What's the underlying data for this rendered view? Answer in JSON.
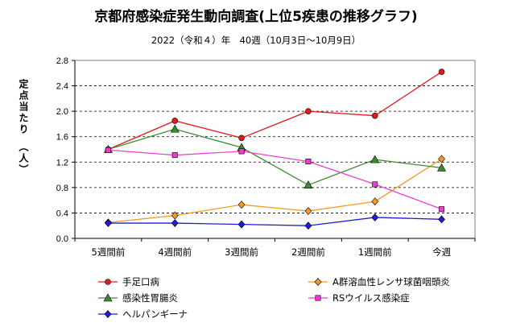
{
  "chart_data": {
    "type": "line",
    "title": "京都府感染症発生動向調査(上位5疾患の推移グラフ)",
    "subtitle": "2022（令和４）年　40週（10月3日〜10月9日）",
    "ylabel": "定点当たり　（人）",
    "xlabel": "",
    "ylim": [
      0,
      2.8
    ],
    "yticks": [
      0.0,
      0.4,
      0.8,
      1.2,
      1.6,
      2.0,
      2.4,
      2.8
    ],
    "ytick_labels": [
      "0.0",
      "0.4",
      "0.8",
      "1.2",
      "1.6",
      "2.0",
      "2.4",
      "2.8"
    ],
    "grid": "horizontal dashed",
    "legend_position": "bottom",
    "categories": [
      "5週間前",
      "4週間前",
      "3週間前",
      "2週間前",
      "1週間前",
      "今週"
    ],
    "series": [
      {
        "name": "手足口病",
        "color": "#e31a1c",
        "marker": "circle",
        "values": [
          1.4,
          1.85,
          1.58,
          2.0,
          1.93,
          2.62
        ]
      },
      {
        "name": "A群溶血性レンサ球菌咽頭炎",
        "color": "#f59a23",
        "marker": "diamond",
        "values": [
          0.25,
          0.36,
          0.53,
          0.43,
          0.58,
          1.25
        ]
      },
      {
        "name": "感染性胃腸炎",
        "color": "#3a8c2e",
        "marker": "triangle",
        "values": [
          1.4,
          1.72,
          1.43,
          0.84,
          1.24,
          1.11
        ]
      },
      {
        "name": "RSウイルス感染症",
        "color": "#ea3fd0",
        "marker": "square",
        "values": [
          1.39,
          1.31,
          1.37,
          1.21,
          0.85,
          0.46
        ]
      },
      {
        "name": "ヘルパンギーナ",
        "color": "#1f1fd1",
        "marker": "diamond",
        "values": [
          0.24,
          0.24,
          0.22,
          0.2,
          0.33,
          0.3
        ]
      }
    ]
  }
}
